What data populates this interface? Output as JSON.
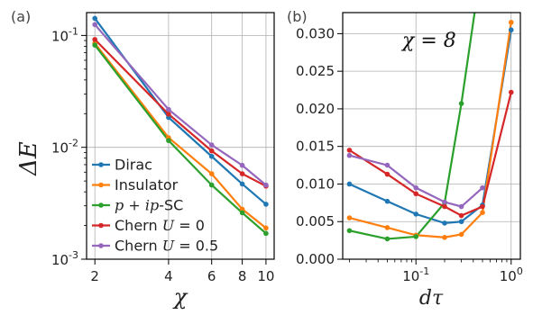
{
  "chart_data": [
    {
      "type": "line",
      "panel_label": "(a)",
      "xlabel": "χ",
      "ylabel": "ΔE",
      "x_scale": "log",
      "y_scale": "log",
      "xlim": [
        1.85,
        10.8
      ],
      "ylim": [
        0.001,
        0.16
      ],
      "x_ticks": [
        {
          "value": 2,
          "label": "2"
        },
        {
          "value": 4,
          "label": "4"
        },
        {
          "value": 6,
          "label": "6"
        },
        {
          "value": 8,
          "label": "8"
        },
        {
          "value": 10,
          "label": "10"
        }
      ],
      "y_ticks": [
        {
          "value": 0.001,
          "mantissa": "10",
          "exp": "-3"
        },
        {
          "value": 0.01,
          "mantissa": "10",
          "exp": "-2"
        },
        {
          "value": 0.1,
          "mantissa": "10",
          "exp": "-1"
        }
      ],
      "legend_position": "lower-left",
      "series": [
        {
          "name": "Dirac",
          "color": "#1f77b4",
          "x": [
            2,
            4,
            6,
            8,
            10
          ],
          "y": [
            0.142,
            0.0185,
            0.0083,
            0.0047,
            0.0031
          ]
        },
        {
          "name": "Insulator",
          "color": "#ff7f0e",
          "x": [
            2,
            4,
            6,
            8,
            10
          ],
          "y": [
            0.085,
            0.0122,
            0.0058,
            0.0028,
            0.0019
          ]
        },
        {
          "name": "p + ip-SC",
          "color": "#2ca02c",
          "x": [
            2,
            4,
            6,
            8,
            10
          ],
          "y": [
            0.082,
            0.0115,
            0.0046,
            0.0026,
            0.0017
          ]
        },
        {
          "name": "Chern U = 0",
          "color": "#d62728",
          "x": [
            2,
            4,
            6,
            8,
            10
          ],
          "y": [
            0.092,
            0.0198,
            0.0093,
            0.0058,
            0.0045
          ]
        },
        {
          "name": "Chern U = 0.5",
          "color": "#9467bd",
          "x": [
            2,
            4,
            6,
            8,
            10
          ],
          "y": [
            0.125,
            0.0218,
            0.0105,
            0.0069,
            0.0046
          ]
        }
      ]
    },
    {
      "type": "line",
      "panel_label": "(b)",
      "xlabel": "dτ",
      "ylabel": "",
      "annotation": "χ = 8",
      "x_scale": "log",
      "y_scale": "linear",
      "xlim": [
        0.017,
        1.25
      ],
      "ylim": [
        0.0,
        0.0328
      ],
      "x_ticks": [
        {
          "value": 0.1,
          "mantissa": "10",
          "exp": "-1"
        },
        {
          "value": 1,
          "mantissa": "10",
          "exp": "0"
        }
      ],
      "y_ticks": [
        {
          "value": 0.0,
          "label": "0.000"
        },
        {
          "value": 0.005,
          "label": "0.005"
        },
        {
          "value": 0.01,
          "label": "0.010"
        },
        {
          "value": 0.015,
          "label": "0.015"
        },
        {
          "value": 0.02,
          "label": "0.020"
        },
        {
          "value": 0.025,
          "label": "0.025"
        },
        {
          "value": 0.03,
          "label": "0.030"
        }
      ],
      "series": [
        {
          "name": "Dirac",
          "color": "#1f77b4",
          "x": [
            0.02,
            0.05,
            0.1,
            0.2,
            0.3,
            0.5,
            1.0
          ],
          "y": [
            0.01,
            0.0077,
            0.006,
            0.0048,
            0.005,
            0.0072,
            0.0305
          ]
        },
        {
          "name": "Insulator",
          "color": "#ff7f0e",
          "x": [
            0.02,
            0.05,
            0.1,
            0.2,
            0.3,
            0.5,
            1.0
          ],
          "y": [
            0.0055,
            0.0042,
            0.0032,
            0.0029,
            0.0033,
            0.0062,
            0.0315
          ]
        },
        {
          "name": "p + ip-SC",
          "color": "#2ca02c",
          "x": [
            0.02,
            0.05,
            0.1,
            0.2,
            0.3,
            0.5
          ],
          "y": [
            0.0038,
            0.0027,
            0.003,
            0.0075,
            0.0207,
            0.04
          ]
        },
        {
          "name": "Chern U = 0",
          "color": "#d62728",
          "x": [
            0.02,
            0.05,
            0.1,
            0.2,
            0.3,
            0.5,
            1.0
          ],
          "y": [
            0.0145,
            0.0113,
            0.0087,
            0.007,
            0.0058,
            0.007,
            0.0222
          ]
        },
        {
          "name": "Chern U = 0.5",
          "color": "#9467bd",
          "x": [
            0.02,
            0.05,
            0.1,
            0.2,
            0.3,
            0.5
          ],
          "y": [
            0.0138,
            0.0125,
            0.0095,
            0.0076,
            0.007,
            0.0095
          ]
        }
      ]
    }
  ],
  "legend": [
    {
      "type": "text",
      "label": "Dirac"
    },
    {
      "type": "text",
      "label": "Insulator"
    },
    {
      "type": "math",
      "prefix": "p + ip",
      "suffix": "-SC"
    },
    {
      "type": "chern",
      "word": "Chern",
      "var": "U",
      "value": "= 0"
    },
    {
      "type": "chern",
      "word": "Chern",
      "var": "U",
      "value": "= 0.5"
    }
  ]
}
